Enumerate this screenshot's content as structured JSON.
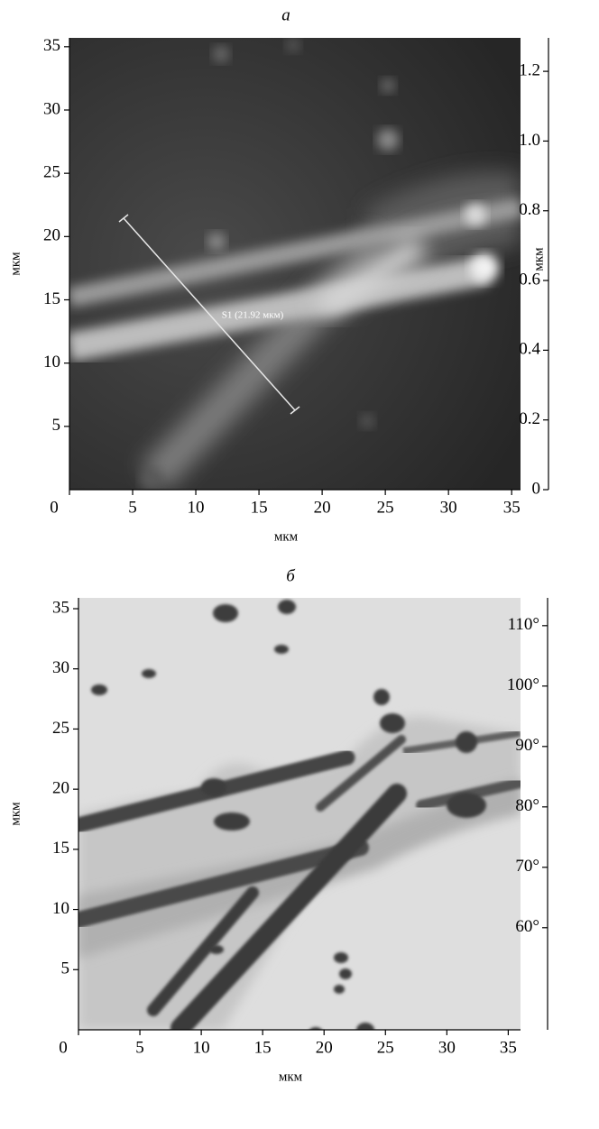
{
  "panels": [
    {
      "label": "а",
      "x_label": "мкм",
      "y_label": "мкм",
      "annotation": "S1 (21.92 мкм)",
      "xlim": [
        0,
        35.7
      ],
      "ylim": [
        0,
        35.7
      ],
      "xticks": [
        0,
        5,
        10,
        15,
        20,
        25,
        30,
        35
      ],
      "yticks": [
        5,
        10,
        15,
        20,
        25,
        30,
        35
      ],
      "colorbar": {
        "label": "мкм",
        "lim": [
          0,
          1.296
        ],
        "ticks": [
          0,
          0.2,
          0.4,
          0.6,
          0.8,
          {
            "value": 1,
            "label": "1.0"
          },
          1.2
        ]
      }
    },
    {
      "label": "б",
      "x_label": "мкм",
      "y_label": "мкм",
      "xlim": [
        0,
        36
      ],
      "ylim": [
        0,
        35.9
      ],
      "xticks": [
        0,
        5,
        10,
        15,
        20,
        25,
        30,
        35
      ],
      "yticks": [
        5,
        10,
        15,
        20,
        25,
        30,
        35
      ],
      "colorbar": {
        "lim": [
          43.1,
          114.6
        ],
        "ticks": [
          {
            "value": 60,
            "label": "60°"
          },
          {
            "value": 70,
            "label": "70°"
          },
          {
            "value": 80,
            "label": "80°"
          },
          {
            "value": 90,
            "label": "90°"
          },
          {
            "value": 100,
            "label": "100°"
          },
          {
            "value": 110,
            "label": "110°"
          }
        ]
      }
    }
  ]
}
